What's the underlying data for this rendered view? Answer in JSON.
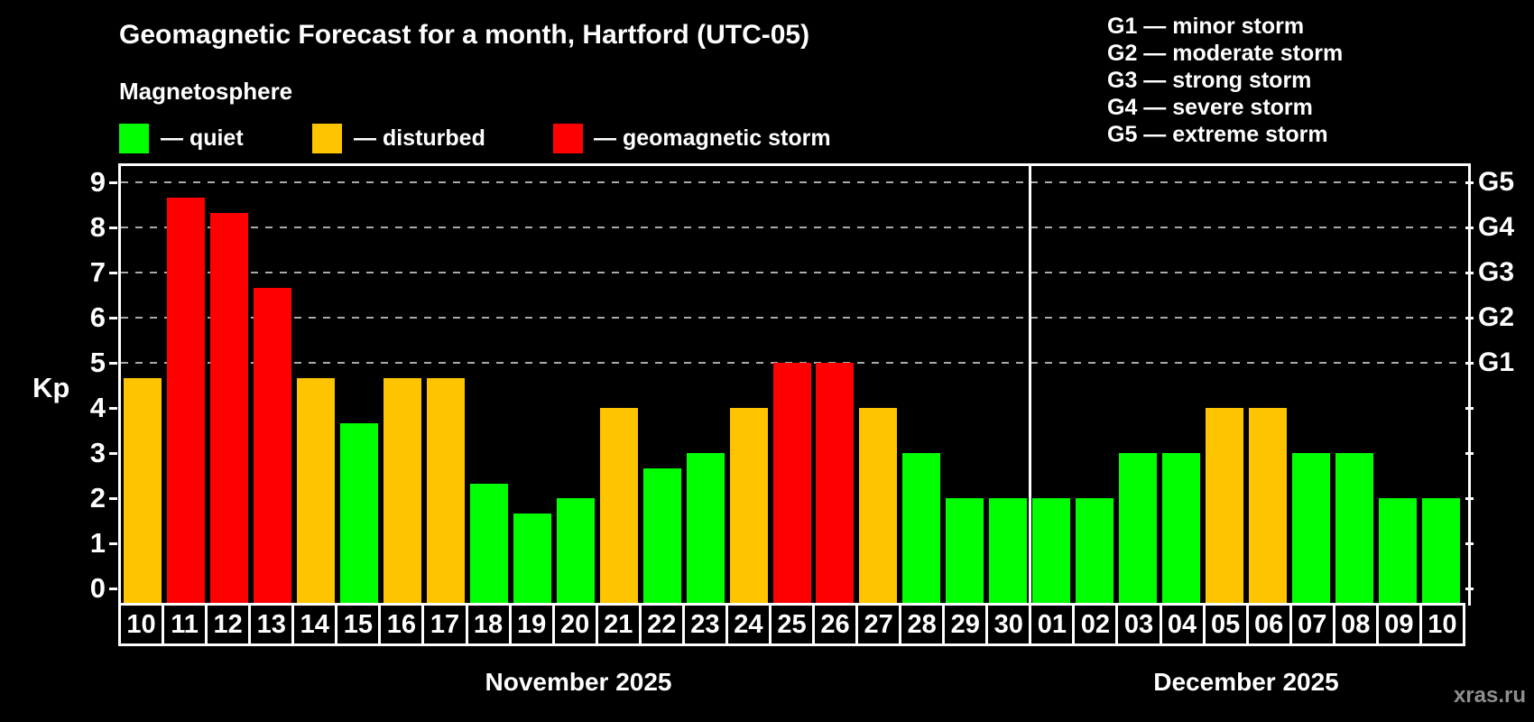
{
  "header": {
    "title": "Geomagnetic Forecast for a month, Hartford (UTC-05)",
    "subtitle": "Magnetosphere",
    "legend": {
      "items": [
        {
          "status": "quiet",
          "label": "— quiet"
        },
        {
          "status": "disturbed",
          "label": "— disturbed"
        },
        {
          "status": "storm",
          "label": "— geomagnetic storm"
        }
      ]
    }
  },
  "g_legend": [
    "G1 — minor storm",
    "G2 — moderate storm",
    "G3 — strong storm",
    "G4 — severe storm",
    "G5 — extreme storm"
  ],
  "watermark": "xras.ru",
  "colors": {
    "quiet": "#00ff00",
    "disturbed": "#ffc400",
    "storm": "#ff0000",
    "grid": "#aaaaaa",
    "axis": "#ffffff",
    "watermark": "#8f8f8f"
  },
  "chart_data": {
    "type": "bar",
    "title": "Geomagnetic Forecast for a month, Hartford (UTC-05)",
    "ylabel": "Kp",
    "ylim": [
      0,
      9.4
    ],
    "yticks": [
      0,
      1,
      2,
      3,
      4,
      5,
      6,
      7,
      8,
      9
    ],
    "grid_levels": [
      5,
      6,
      7,
      8,
      9
    ],
    "grid_style": "dashed",
    "right_axis": [
      {
        "kp": 5,
        "label": "G1"
      },
      {
        "kp": 6,
        "label": "G2"
      },
      {
        "kp": 7,
        "label": "G3"
      },
      {
        "kp": 8,
        "label": "G4"
      },
      {
        "kp": 9,
        "label": "G5"
      }
    ],
    "months": [
      {
        "label": "November 2025",
        "days": 21
      },
      {
        "label": "December 2025",
        "days": 10
      }
    ],
    "days": [
      {
        "day": "10",
        "kp": 4.67,
        "status": "disturbed"
      },
      {
        "day": "11",
        "kp": 8.67,
        "status": "storm"
      },
      {
        "day": "12",
        "kp": 8.33,
        "status": "storm"
      },
      {
        "day": "13",
        "kp": 6.67,
        "status": "storm"
      },
      {
        "day": "14",
        "kp": 4.67,
        "status": "disturbed"
      },
      {
        "day": "15",
        "kp": 3.67,
        "status": "quiet"
      },
      {
        "day": "16",
        "kp": 4.67,
        "status": "disturbed"
      },
      {
        "day": "17",
        "kp": 4.67,
        "status": "disturbed"
      },
      {
        "day": "18",
        "kp": 2.33,
        "status": "quiet"
      },
      {
        "day": "19",
        "kp": 1.67,
        "status": "quiet"
      },
      {
        "day": "20",
        "kp": 2,
        "status": "quiet"
      },
      {
        "day": "21",
        "kp": 4,
        "status": "disturbed"
      },
      {
        "day": "22",
        "kp": 2.67,
        "status": "quiet"
      },
      {
        "day": "23",
        "kp": 3,
        "status": "quiet"
      },
      {
        "day": "24",
        "kp": 4,
        "status": "disturbed"
      },
      {
        "day": "25",
        "kp": 5,
        "status": "storm"
      },
      {
        "day": "26",
        "kp": 5,
        "status": "storm"
      },
      {
        "day": "27",
        "kp": 4,
        "status": "disturbed"
      },
      {
        "day": "28",
        "kp": 3,
        "status": "quiet"
      },
      {
        "day": "29",
        "kp": 2,
        "status": "quiet"
      },
      {
        "day": "30",
        "kp": 2,
        "status": "quiet"
      },
      {
        "day": "01",
        "kp": 2,
        "status": "quiet"
      },
      {
        "day": "02",
        "kp": 2,
        "status": "quiet"
      },
      {
        "day": "03",
        "kp": 3,
        "status": "quiet"
      },
      {
        "day": "04",
        "kp": 3,
        "status": "quiet"
      },
      {
        "day": "05",
        "kp": 4,
        "status": "disturbed"
      },
      {
        "day": "06",
        "kp": 4,
        "status": "disturbed"
      },
      {
        "day": "07",
        "kp": 3,
        "status": "quiet"
      },
      {
        "day": "08",
        "kp": 3,
        "status": "quiet"
      },
      {
        "day": "09",
        "kp": 2,
        "status": "quiet"
      },
      {
        "day": "10",
        "kp": 2,
        "status": "quiet"
      }
    ]
  }
}
